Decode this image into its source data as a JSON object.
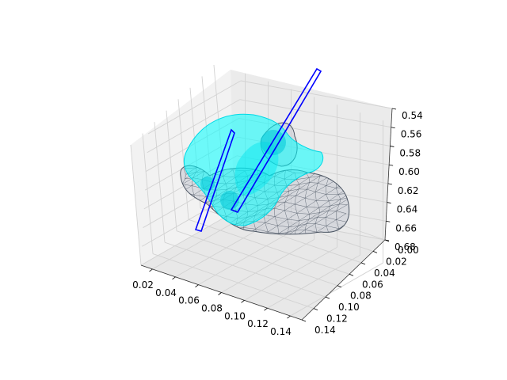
{
  "chart_data": {
    "type": "surface-3d",
    "title": "",
    "xlabel": "",
    "ylabel": "",
    "zlabel": "",
    "x_ticks": [
      "0.02",
      "0.04",
      "0.06",
      "0.08",
      "0.10",
      "0.12",
      "0.14"
    ],
    "y_ticks": [
      "0.00",
      "0.02",
      "0.04",
      "0.06",
      "0.08",
      "0.10",
      "0.12",
      "0.14"
    ],
    "z_ticks": [
      "0.54",
      "0.56",
      "0.58",
      "0.60",
      "0.62",
      "0.64",
      "0.66",
      "0.68"
    ],
    "xlim": [
      0.01,
      0.15
    ],
    "ylim": [
      0.0,
      0.14
    ],
    "zlim": [
      0.54,
      0.68
    ],
    "z_inverted": true,
    "grid": true,
    "series": [
      {
        "kind": "wireframe-mesh",
        "color": "#6b7280"
      },
      {
        "kind": "surface",
        "color": "#00ffff"
      },
      {
        "kind": "outline-polygon",
        "color": "#0000ff"
      },
      {
        "kind": "outline-polygon",
        "color": "#0000ff"
      }
    ],
    "pane_color": "#f2f2f2",
    "grid_color": "#d9d9d9"
  }
}
